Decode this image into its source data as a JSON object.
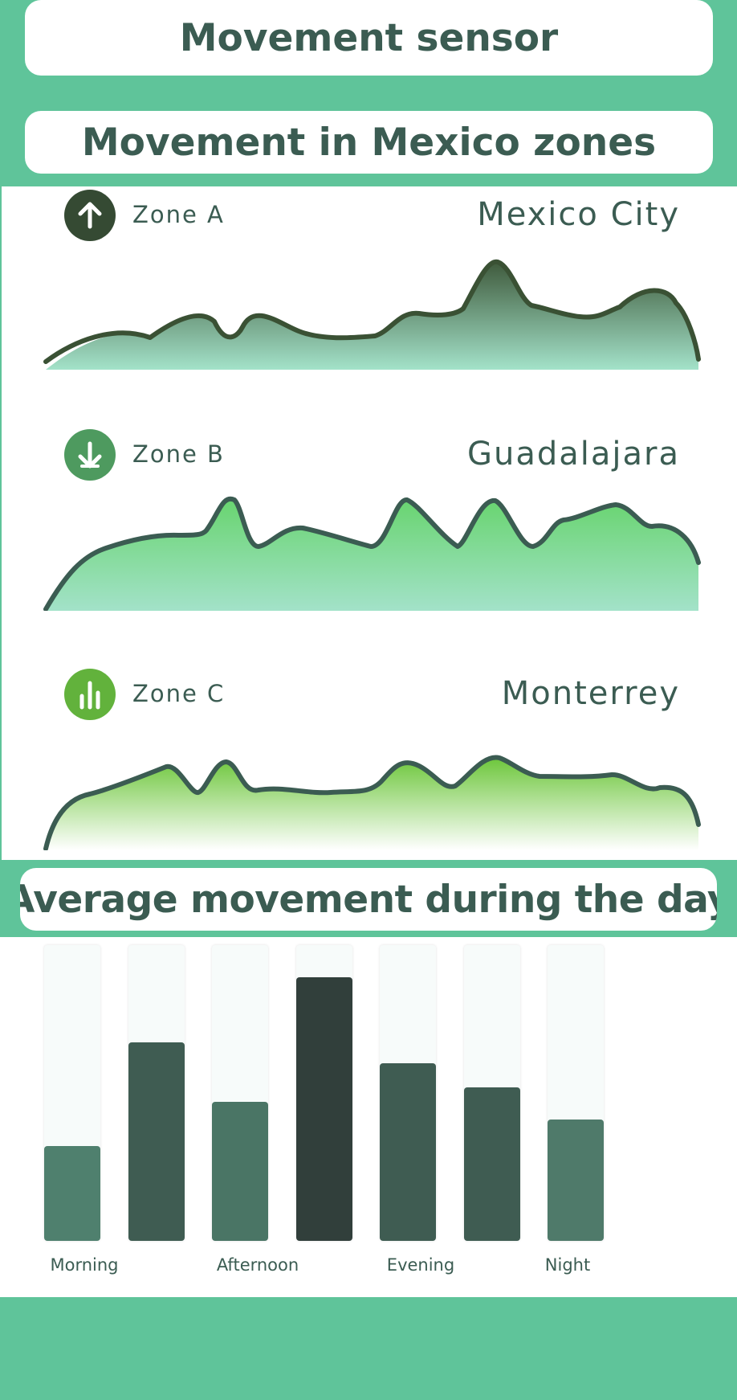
{
  "header": {
    "title": "Movement sensor",
    "subtitle": "Movement in Mexico zones"
  },
  "zones": [
    {
      "label": "Zone A",
      "city": "Mexico City",
      "icon": "arrow-up-icon",
      "icon_color": "#354a33",
      "line_color": "#3a5134",
      "fill_top": "#3f5a3c",
      "fill_bottom": "#a3e2c9"
    },
    {
      "label": "Zone B",
      "city": "Guadalajara",
      "icon": "arrow-down-icon",
      "icon_color": "#4e9a5f",
      "line_color": "#3b5c52",
      "fill_top": "#68d46f",
      "fill_bottom": "#a3e2c9"
    },
    {
      "label": "Zone C",
      "city": "Monterrey",
      "icon": "bar-chart-icon",
      "icon_color": "#62b23c",
      "line_color": "#3b5c52",
      "fill_top": "#6cc63a",
      "fill_bottom": "#ffffff"
    }
  ],
  "daily": {
    "title": "Average movement during the day",
    "labels": [
      "Morning",
      "Afternoon",
      "Evening",
      "Night"
    ],
    "chart_data": {
      "type": "bar",
      "categories": [
        "",
        "",
        "",
        "",
        "",
        "",
        ""
      ],
      "values": [
        32,
        67,
        47,
        89,
        60,
        52,
        41
      ],
      "ylim": [
        0,
        100
      ],
      "x_tick_labels": [
        "Morning",
        "Afternoon",
        "Evening",
        "Night"
      ],
      "colors": [
        "#4f806e",
        "#3f5c52",
        "#4a7565",
        "#313f3b",
        "#3f5c52",
        "#3f5c52",
        "#4f7a6a"
      ]
    }
  },
  "colors": {
    "background": "#5fc49a",
    "text": "#3b5c52"
  }
}
